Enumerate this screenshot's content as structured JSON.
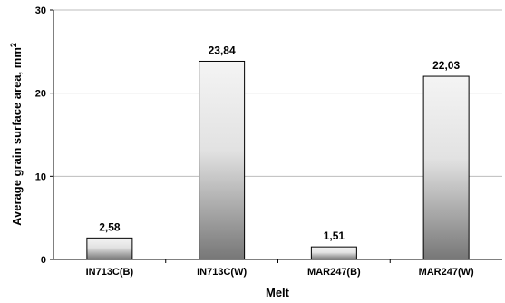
{
  "chart_data": {
    "type": "bar",
    "categories": [
      "IN713C(B)",
      "IN713C(W)",
      "MAR247(B)",
      "MAR247(W)"
    ],
    "values": [
      2.58,
      23.84,
      1.51,
      22.03
    ],
    "data_labels": [
      "2,58",
      "23,84",
      "1,51",
      "22,03"
    ],
    "xlabel": "Melt",
    "ylabel_text": "Average grain surface area, mm",
    "ylabel_sup": "2",
    "ylim": [
      0,
      30
    ],
    "yticks": [
      0,
      10,
      20,
      30
    ],
    "grid": true,
    "legend": "none",
    "bar_fill": "vertical gradient light gray to dark gray",
    "colors": {
      "bar_light": "#f2f2f2",
      "bar_dark": "#7a7a7a",
      "grid": "#bdbdbd"
    }
  }
}
